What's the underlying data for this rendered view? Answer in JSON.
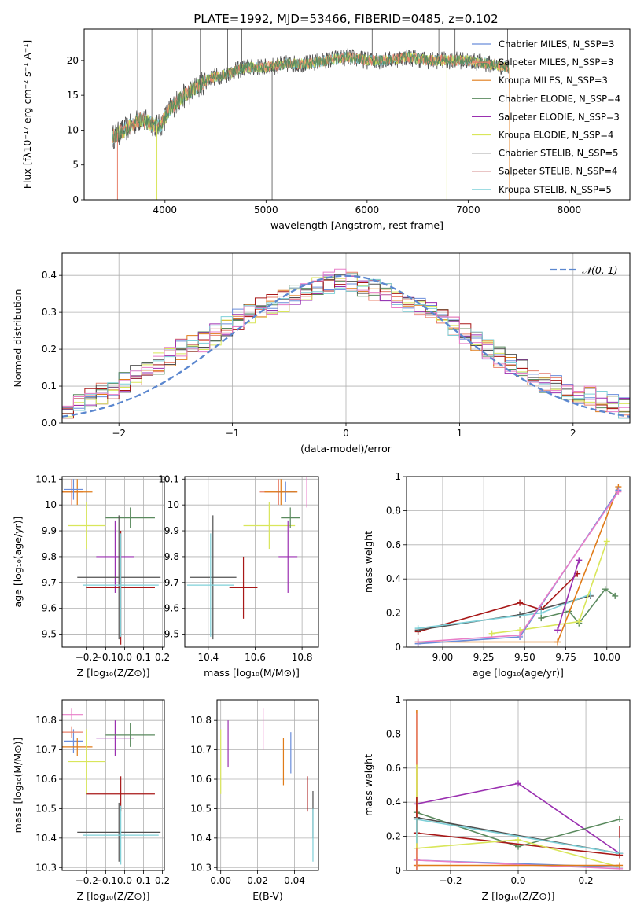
{
  "figure_title": "PLATE=1992, MJD=53466, FIBERID=0485, z=0.102",
  "colors": {
    "Chabrier MILES": "#6a8ddb",
    "Salpeter MILES": "#e8806b",
    "Kroupa MILES": "#e07b18",
    "Chabrier ELODIE": "#5a8a5e",
    "Salpeter ELODIE": "#9a2fb0",
    "Kroupa ELODIE": "#d9e65a",
    "Chabrier STELIB": "#505050",
    "Salpeter STELIB": "#a81818",
    "Kroupa STELIB": "#7fd0d8",
    "pink": "#e87ec8",
    "gauss": "#5b87cf"
  },
  "chart_data": [
    {
      "id": "spectrum",
      "type": "line",
      "xlabel": "wavelength [Angstrom, rest frame]",
      "ylabel": "Flux [fλ10⁻¹⁷ erg cm⁻² s⁻¹ A⁻¹]",
      "xlim": [
        3200,
        8600
      ],
      "ylim": [
        0,
        24.5
      ],
      "xticks": [
        4000,
        5000,
        6000,
        7000,
        8000
      ],
      "yticks": [
        0,
        5,
        10,
        15,
        20
      ],
      "legend_position": "right",
      "legend": [
        "Chabrier MILES, N_SSP=3",
        "Salpeter MILES, N_SSP=3",
        "Kroupa MILES, N_SSP=3",
        "Chabrier ELODIE, N_SSP=4",
        "Salpeter ELODIE, N_SSP=3",
        "Kroupa ELODIE, N_SSP=4",
        "Chabrier STELIB, N_SSP=5",
        "Salpeter STELIB, N_SSP=4",
        "Kroupa STELIB, N_SSP=5"
      ],
      "continuum": {
        "x": [
          3480,
          3600,
          3750,
          3850,
          3950,
          4050,
          4150,
          4300,
          4450,
          4600,
          4800,
          5000,
          5200,
          5400,
          5600,
          5800,
          6000,
          6200,
          6400,
          6600,
          6800,
          7000,
          7200,
          7400
        ],
        "y": [
          9.0,
          10.0,
          11.5,
          11.0,
          10.5,
          13.0,
          14.5,
          16.0,
          17.5,
          18.0,
          19.0,
          19.0,
          19.5,
          19.5,
          20.0,
          20.5,
          20.0,
          20.0,
          20.5,
          20.0,
          20.0,
          20.0,
          19.5,
          19.0
        ]
      },
      "spikes": [
        {
          "x": 3730,
          "y": 24.5
        },
        {
          "x": 3870,
          "y": 24.5
        },
        {
          "x": 4350,
          "y": 24.5
        },
        {
          "x": 4620,
          "y": 24.5
        },
        {
          "x": 4760,
          "y": 24.5
        },
        {
          "x": 5060,
          "y": 0
        },
        {
          "x": 6050,
          "y": 24.5
        },
        {
          "x": 6710,
          "y": 24.5
        },
        {
          "x": 6870,
          "y": 24.5
        },
        {
          "x": 7390,
          "y": 24.5
        }
      ]
    },
    {
      "id": "residuals",
      "type": "line",
      "xlabel": "(data-model)/error",
      "ylabel": "Normed distribution",
      "xlim": [
        -2.5,
        2.5
      ],
      "ylim": [
        0,
        0.46
      ],
      "xticks": [
        -2,
        -1,
        0,
        1,
        2
      ],
      "xticklabels": [
        "−2",
        "−1",
        "0",
        "1",
        "2"
      ],
      "yticks": [
        0.0,
        0.1,
        0.2,
        0.3,
        0.4
      ],
      "yticklabels": [
        "0.0",
        "0.1",
        "0.2",
        "0.3",
        "0.4"
      ],
      "grid": true,
      "legend": "𝒩(0, 1)",
      "legend_position": "top-right",
      "hist_bin_width": 0.1,
      "hist_x_start": -2.5,
      "hist_mean": [
        0.035,
        0.06,
        0.07,
        0.08,
        0.095,
        0.11,
        0.13,
        0.14,
        0.16,
        0.18,
        0.2,
        0.21,
        0.22,
        0.24,
        0.26,
        0.28,
        0.3,
        0.31,
        0.32,
        0.33,
        0.35,
        0.36,
        0.37,
        0.38,
        0.39,
        0.38,
        0.37,
        0.36,
        0.35,
        0.34,
        0.32,
        0.31,
        0.3,
        0.28,
        0.26,
        0.24,
        0.22,
        0.2,
        0.18,
        0.16,
        0.15,
        0.13,
        0.11,
        0.1,
        0.09,
        0.08,
        0.07,
        0.06,
        0.05,
        0.04
      ],
      "gauss_mu": 0,
      "gauss_sigma": 1
    },
    {
      "id": "age-vs-Z",
      "type": "scatter",
      "xlabel": "Z [log₁₀(Z/Z⊙)]",
      "ylabel": "age  [log₁₀(age/yr)]",
      "xlim": [
        -0.33,
        0.21
      ],
      "ylim": [
        9.45,
        10.11
      ],
      "xticks": [
        -0.2,
        -0.1,
        0.0,
        0.1,
        0.2
      ],
      "xticklabels": [
        "−0.2",
        "−0.1",
        "0.0",
        "0.1",
        "0.2"
      ],
      "yticks": [
        9.5,
        9.6,
        9.7,
        9.8,
        9.9,
        10.0,
        10.1
      ],
      "grid": true,
      "points": [
        {
          "c": "Salpeter MILES",
          "x": -0.28,
          "y": 10.05,
          "xe": 0.06,
          "ye": 0.05
        },
        {
          "c": "Kroupa MILES",
          "x": -0.25,
          "y": 10.05,
          "xe": 0.08,
          "ye": 0.05
        },
        {
          "c": "Chabrier MILES",
          "x": -0.27,
          "y": 10.06,
          "xe": 0.05,
          "ye": 0.04
        },
        {
          "c": "Kroupa ELODIE",
          "x": -0.2,
          "y": 9.92,
          "xe": 0.1,
          "ye": 0.09
        },
        {
          "c": "Chabrier ELODIE",
          "x": 0.03,
          "y": 9.95,
          "xe": 0.13,
          "ye": 0.04
        },
        {
          "c": "Salpeter ELODIE",
          "x": -0.05,
          "y": 9.8,
          "xe": 0.1,
          "ye": 0.14
        },
        {
          "c": "Chabrier STELIB",
          "x": -0.03,
          "y": 9.72,
          "xe": 0.22,
          "ye": 0.24
        },
        {
          "c": "Salpeter STELIB",
          "x": -0.02,
          "y": 9.68,
          "xe": 0.18,
          "ye": 0.22
        },
        {
          "c": "Kroupa STELIB",
          "x": -0.02,
          "y": 9.69,
          "xe": 0.2,
          "ye": 0.2
        }
      ]
    },
    {
      "id": "age-vs-mass",
      "type": "scatter",
      "xlabel": "mass [log₁₀(M/M⊙)]",
      "xlim": [
        10.3,
        10.87
      ],
      "ylim": [
        9.45,
        10.11
      ],
      "xticks": [
        10.4,
        10.6,
        10.8
      ],
      "yticks": [
        9.5,
        9.6,
        9.7,
        9.8,
        9.9,
        10.0,
        10.1
      ],
      "grid": true,
      "points": [
        {
          "c": "Salpeter MILES",
          "x": 10.7,
          "y": 10.05,
          "xe": 0.08,
          "ye": 0.05
        },
        {
          "c": "pink",
          "x": 10.82,
          "y": 10.05,
          "xe": 0.0,
          "ye": 0.06
        },
        {
          "c": "Chabrier MILES",
          "x": 10.73,
          "y": 10.05,
          "xe": 0.04,
          "ye": 0.04
        },
        {
          "c": "Kroupa MILES",
          "x": 10.71,
          "y": 10.05,
          "xe": 0.07,
          "ye": 0.05
        },
        {
          "c": "Kroupa ELODIE",
          "x": 10.66,
          "y": 9.92,
          "xe": 0.11,
          "ye": 0.09
        },
        {
          "c": "Chabrier ELODIE",
          "x": 10.75,
          "y": 9.95,
          "xe": 0.04,
          "ye": 0.04
        },
        {
          "c": "Salpeter ELODIE",
          "x": 10.74,
          "y": 9.8,
          "xe": 0.04,
          "ye": 0.14
        },
        {
          "c": "Chabrier STELIB",
          "x": 10.42,
          "y": 9.72,
          "xe": 0.1,
          "ye": 0.24
        },
        {
          "c": "Salpeter STELIB",
          "x": 10.55,
          "y": 9.68,
          "xe": 0.06,
          "ye": 0.12
        },
        {
          "c": "Kroupa STELIB",
          "x": 10.41,
          "y": 9.69,
          "xe": 0.1,
          "ye": 0.2
        }
      ]
    },
    {
      "id": "weight-vs-age",
      "type": "line",
      "xlabel": "age  [log₁₀(age/yr)]",
      "ylabel": "mass weight",
      "xlim": [
        8.78,
        10.14
      ],
      "ylim": [
        0,
        1.0
      ],
      "xticks": [
        9.0,
        9.25,
        9.5,
        9.75,
        10.0
      ],
      "xticklabels": [
        "9.00",
        "9.25",
        "9.50",
        "9.75",
        "10.00"
      ],
      "yticks": [
        0.0,
        0.2,
        0.4,
        0.6,
        0.8,
        1.0
      ],
      "grid": true,
      "series": [
        {
          "c": "Salpeter STELIB",
          "x": [
            8.85,
            9.47,
            9.6,
            9.82
          ],
          "y": [
            0.09,
            0.26,
            0.22,
            0.43
          ]
        },
        {
          "c": "Chabrier STELIB",
          "x": [
            8.85,
            9.47,
            9.9
          ],
          "y": [
            0.1,
            0.19,
            0.3
          ]
        },
        {
          "c": "Kroupa STELIB",
          "x": [
            8.85,
            9.6,
            9.9
          ],
          "y": [
            0.11,
            0.2,
            0.31
          ]
        },
        {
          "c": "Chabrier ELODIE",
          "x": [
            9.6,
            9.77,
            9.83,
            9.99,
            10.05
          ],
          "y": [
            0.17,
            0.21,
            0.14,
            0.34,
            0.3
          ]
        },
        {
          "c": "Kroupa ELODIE",
          "x": [
            9.3,
            9.47,
            9.83,
            10.0
          ],
          "y": [
            0.08,
            0.1,
            0.15,
            0.62
          ]
        },
        {
          "c": "Salpeter ELODIE",
          "x": [
            9.7,
            9.83
          ],
          "y": [
            0.1,
            0.51
          ]
        },
        {
          "c": "Kroupa MILES",
          "x": [
            8.85,
            9.7,
            10.07
          ],
          "y": [
            0.03,
            0.03,
            0.94
          ]
        },
        {
          "c": "Chabrier MILES",
          "x": [
            8.85,
            9.47,
            10.07
          ],
          "y": [
            0.02,
            0.06,
            0.92
          ]
        },
        {
          "c": "pink",
          "x": [
            8.85,
            9.47,
            10.07
          ],
          "y": [
            0.03,
            0.07,
            0.91
          ]
        }
      ]
    },
    {
      "id": "mass-vs-Z",
      "type": "scatter",
      "xlabel": "Z [log₁₀(Z/Z⊙)]",
      "ylabel": "mass [log₁₀(M/M⊙)]",
      "xlim": [
        -0.33,
        0.21
      ],
      "ylim": [
        10.29,
        10.87
      ],
      "xticks": [
        -0.2,
        -0.1,
        0.0,
        0.1,
        0.2
      ],
      "xticklabels": [
        "−0.2",
        "−0.1",
        "0.0",
        "0.1",
        "0.2"
      ],
      "yticks": [
        10.3,
        10.4,
        10.5,
        10.6,
        10.7,
        10.8
      ],
      "grid": true,
      "points": [
        {
          "c": "pink",
          "x": -0.28,
          "y": 10.82,
          "xe": 0.06,
          "ye": 0.02
        },
        {
          "c": "Chabrier MILES",
          "x": -0.27,
          "y": 10.73,
          "xe": 0.05,
          "ye": 0.04
        },
        {
          "c": "Salpeter MILES",
          "x": -0.28,
          "y": 10.76,
          "xe": 0.06,
          "ye": 0.02
        },
        {
          "c": "Kroupa MILES",
          "x": -0.25,
          "y": 10.71,
          "xe": 0.08,
          "ye": 0.03
        },
        {
          "c": "Kroupa ELODIE",
          "x": -0.2,
          "y": 10.66,
          "xe": 0.1,
          "ye": 0.11
        },
        {
          "c": "Salpeter ELODIE",
          "x": -0.05,
          "y": 10.74,
          "xe": 0.1,
          "ye": 0.06
        },
        {
          "c": "Chabrier ELODIE",
          "x": 0.03,
          "y": 10.75,
          "xe": 0.13,
          "ye": 0.04
        },
        {
          "c": "Salpeter STELIB",
          "x": -0.02,
          "y": 10.55,
          "xe": 0.18,
          "ye": 0.06
        },
        {
          "c": "Chabrier STELIB",
          "x": -0.03,
          "y": 10.42,
          "xe": 0.22,
          "ye": 0.1
        },
        {
          "c": "Kroupa STELIB",
          "x": -0.02,
          "y": 10.41,
          "xe": 0.2,
          "ye": 0.1
        }
      ]
    },
    {
      "id": "mass-vs-EBV",
      "type": "scatter",
      "xlabel": "E(B-V)",
      "xlim": [
        -0.002,
        0.053
      ],
      "ylim": [
        10.29,
        10.87
      ],
      "xticks": [
        0.0,
        0.02,
        0.04
      ],
      "xticklabels": [
        "0.00",
        "0.02",
        "0.04"
      ],
      "yticks": [
        10.3,
        10.4,
        10.5,
        10.6,
        10.7,
        10.8
      ],
      "grid": true,
      "points": [
        {
          "c": "Kroupa ELODIE",
          "x": 0.0,
          "y": 10.66,
          "xe": 0.0,
          "ye": 0.11
        },
        {
          "c": "Salpeter ELODIE",
          "x": 0.004,
          "y": 10.72,
          "xe": 0.0,
          "ye": 0.08
        },
        {
          "c": "pink",
          "x": 0.023,
          "y": 10.77,
          "xe": 0.0,
          "ye": 0.07
        },
        {
          "c": "Kroupa MILES",
          "x": 0.034,
          "y": 10.66,
          "xe": 0.0,
          "ye": 0.08
        },
        {
          "c": "Chabrier MILES",
          "x": 0.038,
          "y": 10.69,
          "xe": 0.0,
          "ye": 0.07
        },
        {
          "c": "Salpeter STELIB",
          "x": 0.047,
          "y": 10.55,
          "xe": 0.0,
          "ye": 0.06
        },
        {
          "c": "Chabrier STELIB",
          "x": 0.05,
          "y": 10.48,
          "xe": 0.0,
          "ye": 0.08
        },
        {
          "c": "Kroupa STELIB",
          "x": 0.05,
          "y": 10.41,
          "xe": 0.0,
          "ye": 0.09
        }
      ]
    },
    {
      "id": "weight-vs-Z",
      "type": "line",
      "xlabel": "Z [log₁₀(Z/Z⊙)]",
      "ylabel": "mass weight",
      "xlim": [
        -0.33,
        0.33
      ],
      "ylim": [
        0,
        1.0
      ],
      "xticks": [
        -0.2,
        0.0,
        0.2
      ],
      "xticklabels": [
        "−0.2",
        "0.0",
        "0.2"
      ],
      "yticks": [
        0.0,
        0.2,
        0.4,
        0.6,
        0.8,
        1.0
      ],
      "grid": true,
      "series": [
        {
          "c": "Salpeter ELODIE",
          "x": [
            -0.3,
            0.0,
            0.3
          ],
          "y": [
            0.39,
            0.51,
            0.1
          ]
        },
        {
          "c": "Chabrier ELODIE",
          "x": [
            -0.3,
            0.0,
            0.3
          ],
          "y": [
            0.34,
            0.14,
            0.3
          ]
        },
        {
          "c": "Chabrier STELIB",
          "x": [
            -0.3,
            0.3
          ],
          "y": [
            0.31,
            0.1
          ]
        },
        {
          "c": "Kroupa STELIB",
          "x": [
            -0.3,
            0.3
          ],
          "y": [
            0.3,
            0.1
          ]
        },
        {
          "c": "Salpeter STELIB",
          "x": [
            -0.3,
            0.3
          ],
          "y": [
            0.22,
            0.09
          ]
        },
        {
          "c": "Kroupa ELODIE",
          "x": [
            -0.3,
            0.0,
            0.3
          ],
          "y": [
            0.13,
            0.18,
            0.02
          ]
        },
        {
          "c": "Chabrier MILES",
          "x": [
            -0.3,
            0.3
          ],
          "y": [
            0.06,
            0.02
          ]
        },
        {
          "c": "pink",
          "x": [
            -0.3,
            0.3
          ],
          "y": [
            0.06,
            0.01
          ]
        },
        {
          "c": "Kroupa MILES",
          "x": [
            -0.3,
            0.3
          ],
          "y": [
            0.03,
            0.03
          ]
        }
      ],
      "vertical_markers": [
        {
          "c": "Kroupa MILES",
          "x": -0.3,
          "y": [
            0.0,
            0.94
          ]
        },
        {
          "c": "Salpeter MILES",
          "x": -0.3,
          "y": [
            0.0,
            0.92
          ]
        },
        {
          "c": "Kroupa ELODIE",
          "x": -0.3,
          "y": [
            0.13,
            0.62
          ]
        },
        {
          "c": "Salpeter STELIB",
          "x": -0.3,
          "y": [
            0.22,
            0.43
          ]
        },
        {
          "c": "Kroupa STELIB",
          "x": -0.3,
          "y": [
            0.16,
            0.31
          ]
        },
        {
          "c": "Salpeter STELIB",
          "x": 0.3,
          "y": [
            0.09,
            0.26
          ]
        },
        {
          "c": "Kroupa STELIB",
          "x": 0.3,
          "y": [
            0.1,
            0.19
          ]
        }
      ]
    }
  ]
}
